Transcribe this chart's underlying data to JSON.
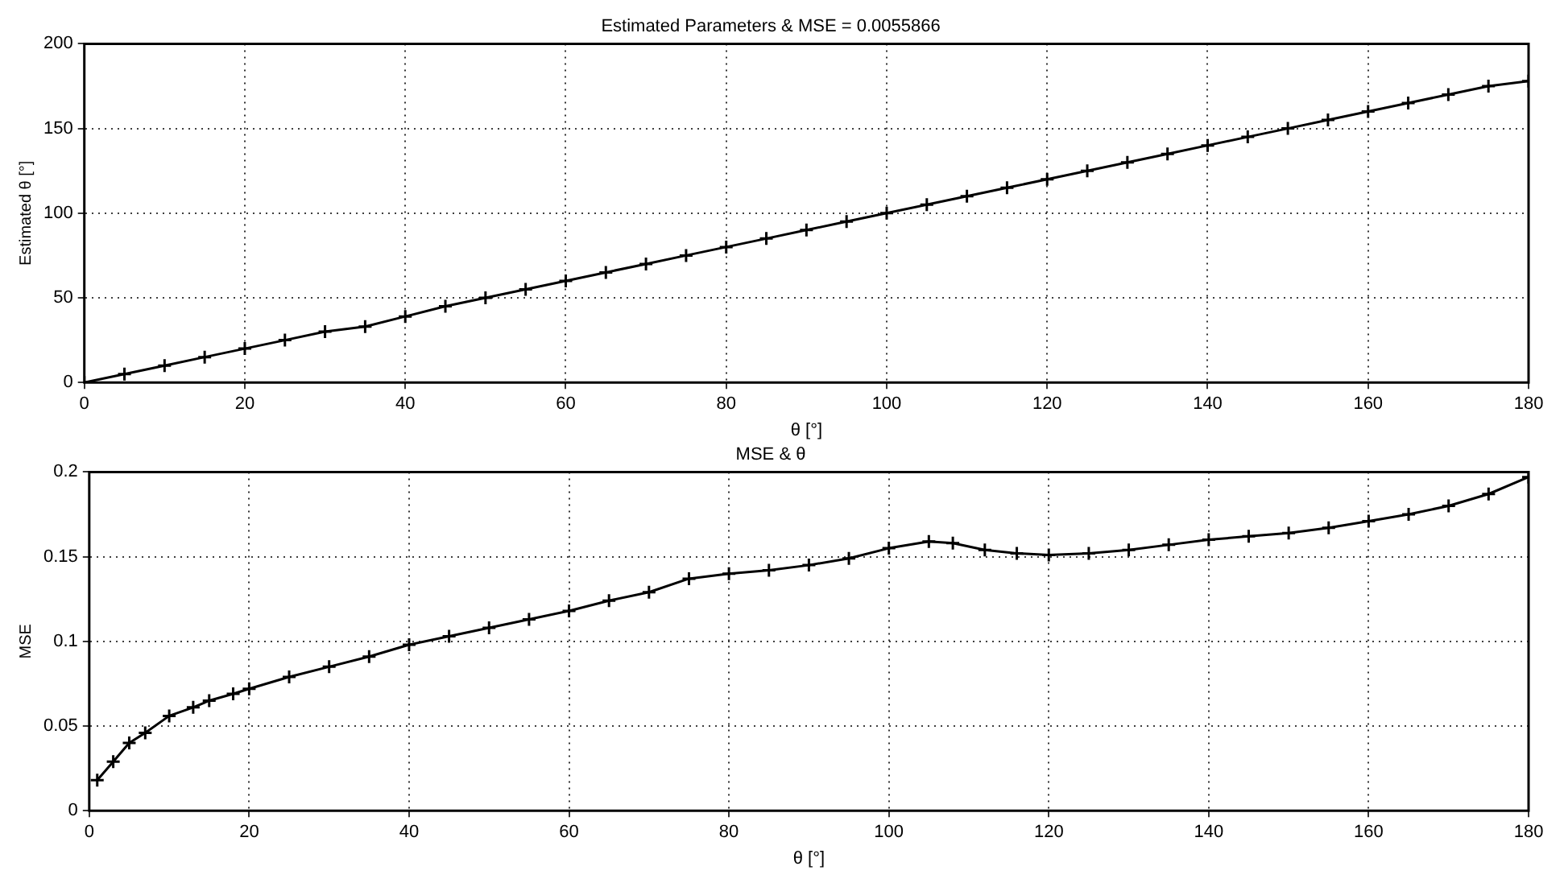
{
  "chart_data": [
    {
      "type": "line",
      "title": "Estimated Parameters & MSE = 0.0055866",
      "xlabel": "θ [°]",
      "ylabel": "Estimated θ [°]",
      "x": [
        0,
        5,
        10,
        15,
        20,
        25,
        30,
        35,
        40,
        45,
        50,
        55,
        60,
        65,
        70,
        75,
        80,
        85,
        90,
        95,
        100,
        105,
        110,
        115,
        120,
        125,
        130,
        135,
        140,
        145,
        150,
        155,
        160,
        165,
        170,
        175,
        180
      ],
      "series": [
        {
          "color": "#000000",
          "values": [
            0,
            5,
            10,
            15,
            20,
            25,
            30,
            33,
            39,
            45,
            50,
            55,
            60,
            65,
            70,
            75,
            80,
            85,
            90,
            95,
            100,
            105,
            110,
            115,
            120,
            125,
            130,
            135,
            140,
            145,
            150,
            155,
            160,
            165,
            170,
            175,
            178
          ]
        }
      ],
      "xlim": [
        0,
        180
      ],
      "xticks": [
        0,
        20,
        40,
        60,
        80,
        100,
        120,
        140,
        160,
        180
      ],
      "ylim": [
        0,
        200
      ],
      "yticks": [
        0,
        50,
        100,
        150,
        200
      ],
      "grid": true,
      "marker": "cross",
      "line_style": "solid",
      "legend": false
    },
    {
      "type": "line",
      "title": "MSE & θ",
      "xlabel": "θ [°]",
      "ylabel": "MSE",
      "x": [
        1,
        3,
        5,
        7,
        10,
        13,
        15,
        18,
        20,
        25,
        30,
        35,
        40,
        45,
        50,
        55,
        60,
        65,
        70,
        75,
        80,
        85,
        90,
        95,
        100,
        105,
        108,
        112,
        116,
        120,
        125,
        130,
        135,
        140,
        145,
        150,
        155,
        160,
        165,
        170,
        175,
        180
      ],
      "series": [
        {
          "color": "#000000",
          "values": [
            0.018,
            0.029,
            0.04,
            0.046,
            0.056,
            0.061,
            0.065,
            0.069,
            0.072,
            0.079,
            0.085,
            0.091,
            0.098,
            0.103,
            0.108,
            0.113,
            0.118,
            0.124,
            0.129,
            0.137,
            0.14,
            0.142,
            0.145,
            0.149,
            0.155,
            0.159,
            0.158,
            0.154,
            0.152,
            0.151,
            0.152,
            0.154,
            0.157,
            0.16,
            0.162,
            0.164,
            0.167,
            0.171,
            0.175,
            0.18,
            0.187,
            0.197
          ]
        }
      ],
      "xlim": [
        0,
        180
      ],
      "xticks": [
        0,
        20,
        40,
        60,
        80,
        100,
        120,
        140,
        160,
        180
      ],
      "ylim": [
        0,
        0.2
      ],
      "yticks": [
        0,
        0.05,
        0.1,
        0.15,
        0.2
      ],
      "grid": true,
      "marker": "cross",
      "line_style": "solid",
      "legend": false
    }
  ]
}
